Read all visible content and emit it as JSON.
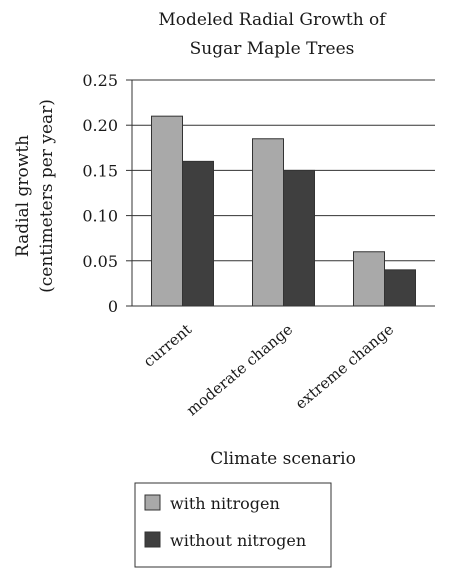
{
  "chart_data": {
    "type": "bar",
    "title_lines": [
      "Modeled Radial Growth of",
      "Sugar Maple Trees"
    ],
    "ylabel_lines": [
      "Radial growth",
      "(centimeters per year)"
    ],
    "xlabel": "Climate scenario",
    "categories": [
      "current",
      "moderate change",
      "extreme change"
    ],
    "series": [
      {
        "name": "with nitrogen",
        "values": [
          0.21,
          0.185,
          0.06
        ],
        "color": "#a9a9a9"
      },
      {
        "name": "without nitrogen",
        "values": [
          0.16,
          0.15,
          0.04
        ],
        "color": "#3f3f3f"
      }
    ],
    "ylim": [
      0,
      0.25
    ],
    "yticks": [
      "0",
      "0.05",
      "0.10",
      "0.15",
      "0.20",
      "0.25"
    ],
    "grid": true,
    "legend_position": "bottom-left"
  }
}
